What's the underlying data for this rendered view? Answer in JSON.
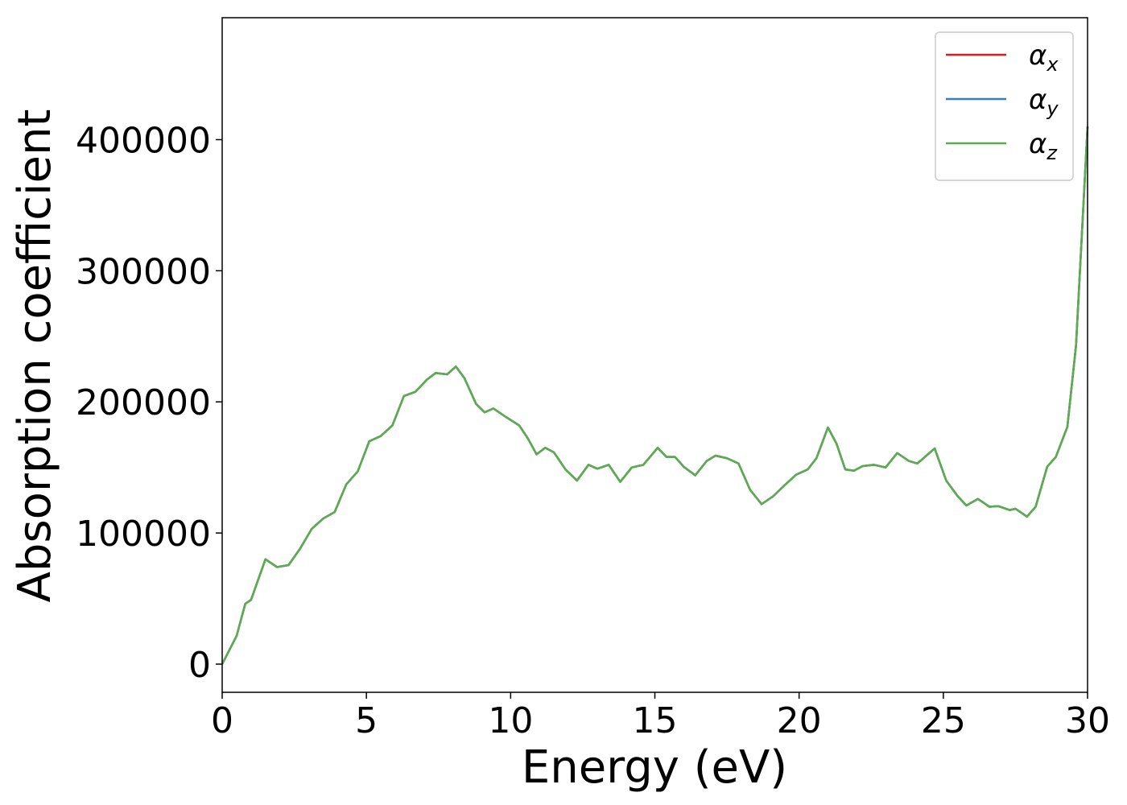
{
  "chart_data": {
    "type": "line",
    "xlabel": "Energy (eV)",
    "ylabel": "Absorption coefficient",
    "xlim": [
      0,
      30
    ],
    "ylim": [
      -21500,
      493000
    ],
    "xticks": [
      0,
      5,
      10,
      15,
      20,
      25,
      30
    ],
    "yticks": [
      0,
      100000,
      200000,
      300000,
      400000
    ],
    "legend": "upper right",
    "x": [
      0,
      0.5,
      0.8,
      1.0,
      1.5,
      1.9,
      2.3,
      2.7,
      3.1,
      3.5,
      3.9,
      4.3,
      4.7,
      5.1,
      5.5,
      5.9,
      6.3,
      6.7,
      7.1,
      7.4,
      7.8,
      8.1,
      8.4,
      8.8,
      9.1,
      9.4,
      9.8,
      10.3,
      10.6,
      10.9,
      11.2,
      11.5,
      11.9,
      12.3,
      12.7,
      13.0,
      13.4,
      13.8,
      14.2,
      14.6,
      15.1,
      15.4,
      15.7,
      16.0,
      16.4,
      16.8,
      17.1,
      17.5,
      17.9,
      18.3,
      18.7,
      19.1,
      19.5,
      19.9,
      20.3,
      20.6,
      21.0,
      21.3,
      21.6,
      21.9,
      22.2,
      22.6,
      23.0,
      23.4,
      23.8,
      24.1,
      24.7,
      25.1,
      25.5,
      25.8,
      26.2,
      26.6,
      26.9,
      27.3,
      27.5,
      27.9,
      28.2,
      28.6,
      28.9,
      29.3,
      29.6,
      30.0
    ],
    "series": [
      {
        "name": "αx",
        "color": "#e41a1c",
        "values": [
          0,
          21500,
          46000,
          49000,
          80000,
          74000,
          75500,
          88000,
          103000,
          111000,
          116000,
          137000,
          147000,
          170000,
          174000,
          182000,
          204500,
          207700,
          217000,
          222000,
          221000,
          227000,
          218000,
          198500,
          192000,
          195000,
          189000,
          182000,
          172000,
          160000,
          165000,
          161500,
          148500,
          140000,
          152000,
          149000,
          152000,
          139000,
          150000,
          152000,
          165000,
          158000,
          158000,
          150500,
          144000,
          155000,
          159000,
          157000,
          153000,
          133000,
          122000,
          128000,
          136500,
          144500,
          148500,
          157000,
          180500,
          168000,
          148500,
          147500,
          151000,
          152000,
          150000,
          161000,
          155000,
          153000,
          164500,
          140000,
          128000,
          121000,
          126000,
          120000,
          120500,
          117500,
          118500,
          112500,
          120000,
          150500,
          158000,
          181000,
          243000,
          410000
        ]
      },
      {
        "name": "αy",
        "color": "#377eb8",
        "values": [
          0,
          21500,
          46000,
          49000,
          80000,
          74000,
          75500,
          88000,
          103000,
          111000,
          116000,
          137000,
          147000,
          170000,
          174000,
          182000,
          204500,
          207700,
          217000,
          222000,
          221000,
          227000,
          218000,
          198500,
          192000,
          195000,
          189000,
          182000,
          172000,
          160000,
          165000,
          161500,
          148500,
          140000,
          152000,
          149000,
          152000,
          139000,
          150000,
          152000,
          165000,
          158000,
          158000,
          150500,
          144000,
          155000,
          159000,
          157000,
          153000,
          133000,
          122000,
          128000,
          136500,
          144500,
          148500,
          157000,
          180500,
          168000,
          148500,
          147500,
          151000,
          152000,
          150000,
          161000,
          155000,
          153000,
          164500,
          140000,
          128000,
          121000,
          126000,
          120000,
          120500,
          117500,
          118500,
          112500,
          120000,
          150500,
          158000,
          181000,
          243000,
          410000
        ]
      },
      {
        "name": "αz",
        "color": "#5aad4e",
        "values": [
          0,
          21500,
          46000,
          49000,
          80000,
          74000,
          75500,
          88000,
          103000,
          111000,
          116000,
          137000,
          147000,
          170000,
          174000,
          182000,
          204500,
          207700,
          217000,
          222000,
          221000,
          227000,
          218000,
          198500,
          192000,
          195000,
          189000,
          182000,
          172000,
          160000,
          165000,
          161500,
          148500,
          140000,
          152000,
          149000,
          152000,
          139000,
          150000,
          152000,
          165000,
          158000,
          158000,
          150500,
          144000,
          155000,
          159000,
          157000,
          153000,
          133000,
          122000,
          128000,
          136500,
          144500,
          148500,
          157000,
          180500,
          168000,
          148500,
          147500,
          151000,
          152000,
          150000,
          161000,
          155000,
          153000,
          164500,
          140000,
          128000,
          121000,
          126000,
          120000,
          120500,
          117500,
          118500,
          112500,
          120000,
          150500,
          158000,
          181000,
          243000,
          410000
        ]
      }
    ]
  }
}
